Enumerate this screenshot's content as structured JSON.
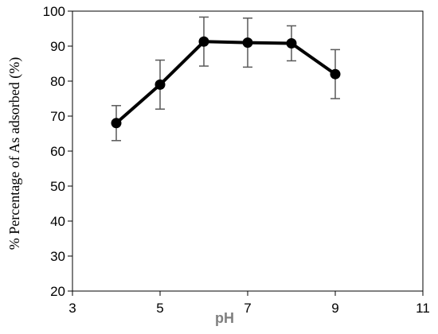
{
  "chart_data": {
    "type": "line",
    "title": "",
    "xlabel": "pH",
    "ylabel": "% Percentage of As adsorbed (%)",
    "xlim": [
      3,
      11
    ],
    "ylim": [
      20,
      100
    ],
    "x_ticks": [
      "3",
      "5",
      "7",
      "9",
      "11"
    ],
    "y_ticks": [
      "20",
      "30",
      "40",
      "50",
      "60",
      "70",
      "80",
      "90",
      "100"
    ],
    "grid": false,
    "legend": "none",
    "series": [
      {
        "x": [
          4,
          5,
          6,
          7,
          8,
          9
        ],
        "y": [
          68,
          79,
          91.3,
          91,
          90.8,
          82
        ],
        "error_low": [
          63,
          72,
          84.3,
          84,
          85.8,
          75
        ],
        "error_high": [
          73,
          86,
          98.3,
          98,
          95.8,
          89
        ],
        "color": "#000000",
        "error_color": "#595959",
        "marker": "circle"
      }
    ]
  }
}
